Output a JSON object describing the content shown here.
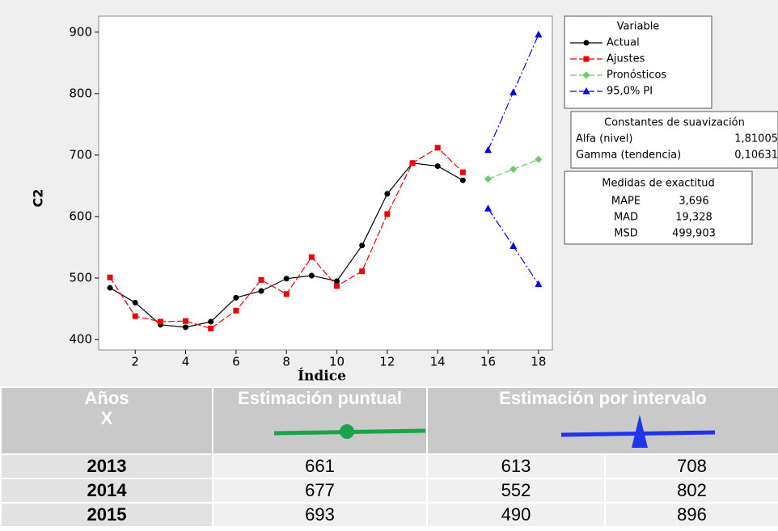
{
  "chart_data": {
    "type": "line",
    "y_label": "C2",
    "x_label": "Índice",
    "xlim": [
      0.55,
      18.55
    ],
    "xticks": [
      2,
      4,
      6,
      8,
      10,
      12,
      14,
      16,
      18
    ],
    "ylim": [
      383,
      926
    ],
    "yticks": [
      400,
      500,
      600,
      700,
      800,
      900
    ],
    "x": [
      1,
      2,
      3,
      4,
      5,
      6,
      7,
      8,
      9,
      10,
      11,
      12,
      13,
      14,
      15,
      16,
      17,
      18
    ],
    "legend_title": "Variable",
    "series": [
      {
        "name": "Actual",
        "color": "#000000",
        "marker": "circle",
        "dash": false,
        "values": [
          484,
          460,
          424,
          420,
          429,
          468,
          479,
          499,
          504,
          495,
          553,
          637,
          687,
          682,
          659,
          null,
          null,
          null
        ]
      },
      {
        "name": "Ajustes",
        "color": "#ee0000",
        "marker": "square",
        "dash": true,
        "values": [
          501,
          438,
          429,
          430,
          418,
          447,
          497,
          474,
          534,
          487,
          511,
          604,
          687,
          712,
          672,
          null,
          null,
          null
        ]
      },
      {
        "name": "Pronósticos",
        "color": "#66cc66",
        "marker": "diamond",
        "dash": true,
        "values": [
          null,
          null,
          null,
          null,
          null,
          null,
          null,
          null,
          null,
          null,
          null,
          null,
          null,
          null,
          null,
          661,
          677,
          693
        ]
      }
    ],
    "interval": {
      "name": "95,0% PI",
      "color": "#0000ee",
      "marker": "triangle",
      "lower": [
        null,
        null,
        null,
        null,
        null,
        null,
        null,
        null,
        null,
        null,
        null,
        null,
        null,
        null,
        null,
        613,
        552,
        490
      ],
      "upper": [
        null,
        null,
        null,
        null,
        null,
        null,
        null,
        null,
        null,
        null,
        null,
        null,
        null,
        null,
        null,
        708,
        802,
        896
      ]
    },
    "smoothing": {
      "title": "Constantes de suavización",
      "rows": [
        [
          "Alfa (nivel)",
          "1,81005"
        ],
        [
          "Gamma (tendencia)",
          "0,10631"
        ]
      ]
    },
    "accuracy": {
      "title": "Medidas de exactitud",
      "rows": [
        [
          "MAPE",
          "3,696"
        ],
        [
          "MAD",
          "19,328"
        ],
        [
          "MSD",
          "499,903"
        ]
      ]
    }
  },
  "table": {
    "header": [
      [
        "Años",
        "X"
      ],
      "Estimación puntual",
      "Estimación por intervalo"
    ],
    "rows": [
      [
        2013,
        661,
        613,
        708
      ],
      [
        2014,
        677,
        552,
        802
      ],
      [
        2015,
        693,
        490,
        896
      ]
    ]
  }
}
